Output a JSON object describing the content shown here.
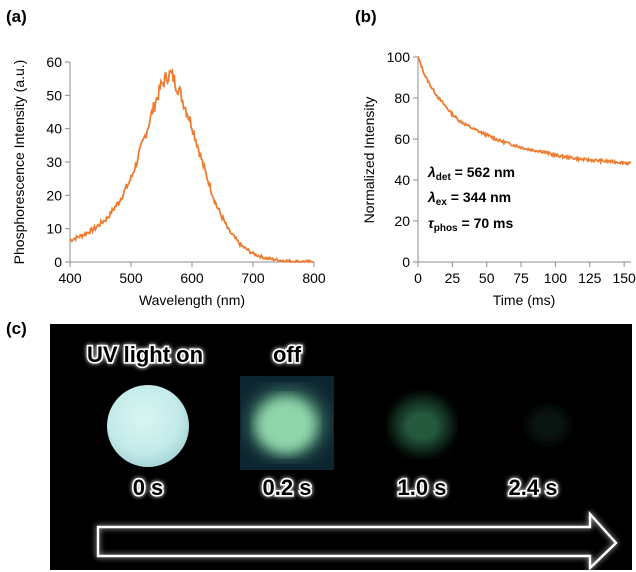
{
  "panels": {
    "a_label": "(a)",
    "b_label": "(b)",
    "c_label": "(c)"
  },
  "colors": {
    "curve": "#ED7D31",
    "photo_background": "#000000",
    "arrow_outline": "#ffffff",
    "glow": "#ffffff",
    "sample_uv_on": "#c6ecec",
    "sample_afterglow": "#7fd9a3"
  },
  "chart_data": [
    {
      "id": "a",
      "type": "line",
      "title": "",
      "xlabel": "Wavelength (nm)",
      "ylabel": "Phosphorescence Intensity (a.u.)",
      "xlim": [
        400,
        800
      ],
      "ylim": [
        0,
        60
      ],
      "xticks": [
        400,
        500,
        600,
        700,
        800
      ],
      "yticks": [
        0,
        10,
        20,
        30,
        40,
        50,
        60
      ],
      "grid": false,
      "legend": "none",
      "series": [
        {
          "x": [
            400,
            420,
            440,
            460,
            480,
            500,
            520,
            540,
            550,
            560,
            565,
            570,
            580,
            600,
            620,
            640,
            660,
            680,
            700,
            720,
            740,
            760,
            780,
            800
          ],
          "y": [
            6.5,
            8,
            10,
            13,
            18,
            25,
            36,
            48,
            53,
            56,
            56.5,
            55,
            51,
            41,
            28,
            17,
            9.5,
            5,
            2.5,
            1.2,
            0.6,
            0.3,
            0.15,
            0.1
          ]
        }
      ]
    },
    {
      "id": "b",
      "type": "line",
      "title": "",
      "xlabel": "Time (ms)",
      "ylabel": "Normalized Intensity",
      "xlim": [
        0,
        155
      ],
      "ylim": [
        0,
        100
      ],
      "xticks": [
        0,
        25,
        50,
        75,
        100,
        125,
        150
      ],
      "yticks": [
        0,
        20,
        40,
        60,
        80,
        100
      ],
      "grid": false,
      "legend": "none",
      "annotations": [
        {
          "symbol": "λ",
          "subscript": "det",
          "value": " = 562 nm"
        },
        {
          "symbol": "λ",
          "subscript": "ex",
          "value": " = 344 nm"
        },
        {
          "symbol": "τ",
          "subscript": "phos",
          "value": " = 70 ms"
        }
      ],
      "series": [
        {
          "x": [
            0,
            5,
            10,
            15,
            20,
            25,
            30,
            40,
            50,
            60,
            70,
            80,
            90,
            100,
            110,
            120,
            130,
            140,
            150,
            155
          ],
          "y": [
            100,
            91,
            85,
            80,
            76,
            72,
            69,
            65,
            62,
            59,
            57,
            55,
            54,
            52,
            51,
            50,
            49.5,
            49,
            48.5,
            48
          ]
        }
      ]
    }
  ],
  "photo": {
    "uv_label": "UV light on",
    "off_label": "off",
    "times": [
      "0 s",
      "0.2 s",
      "1.0 s",
      "2.4 s"
    ]
  }
}
